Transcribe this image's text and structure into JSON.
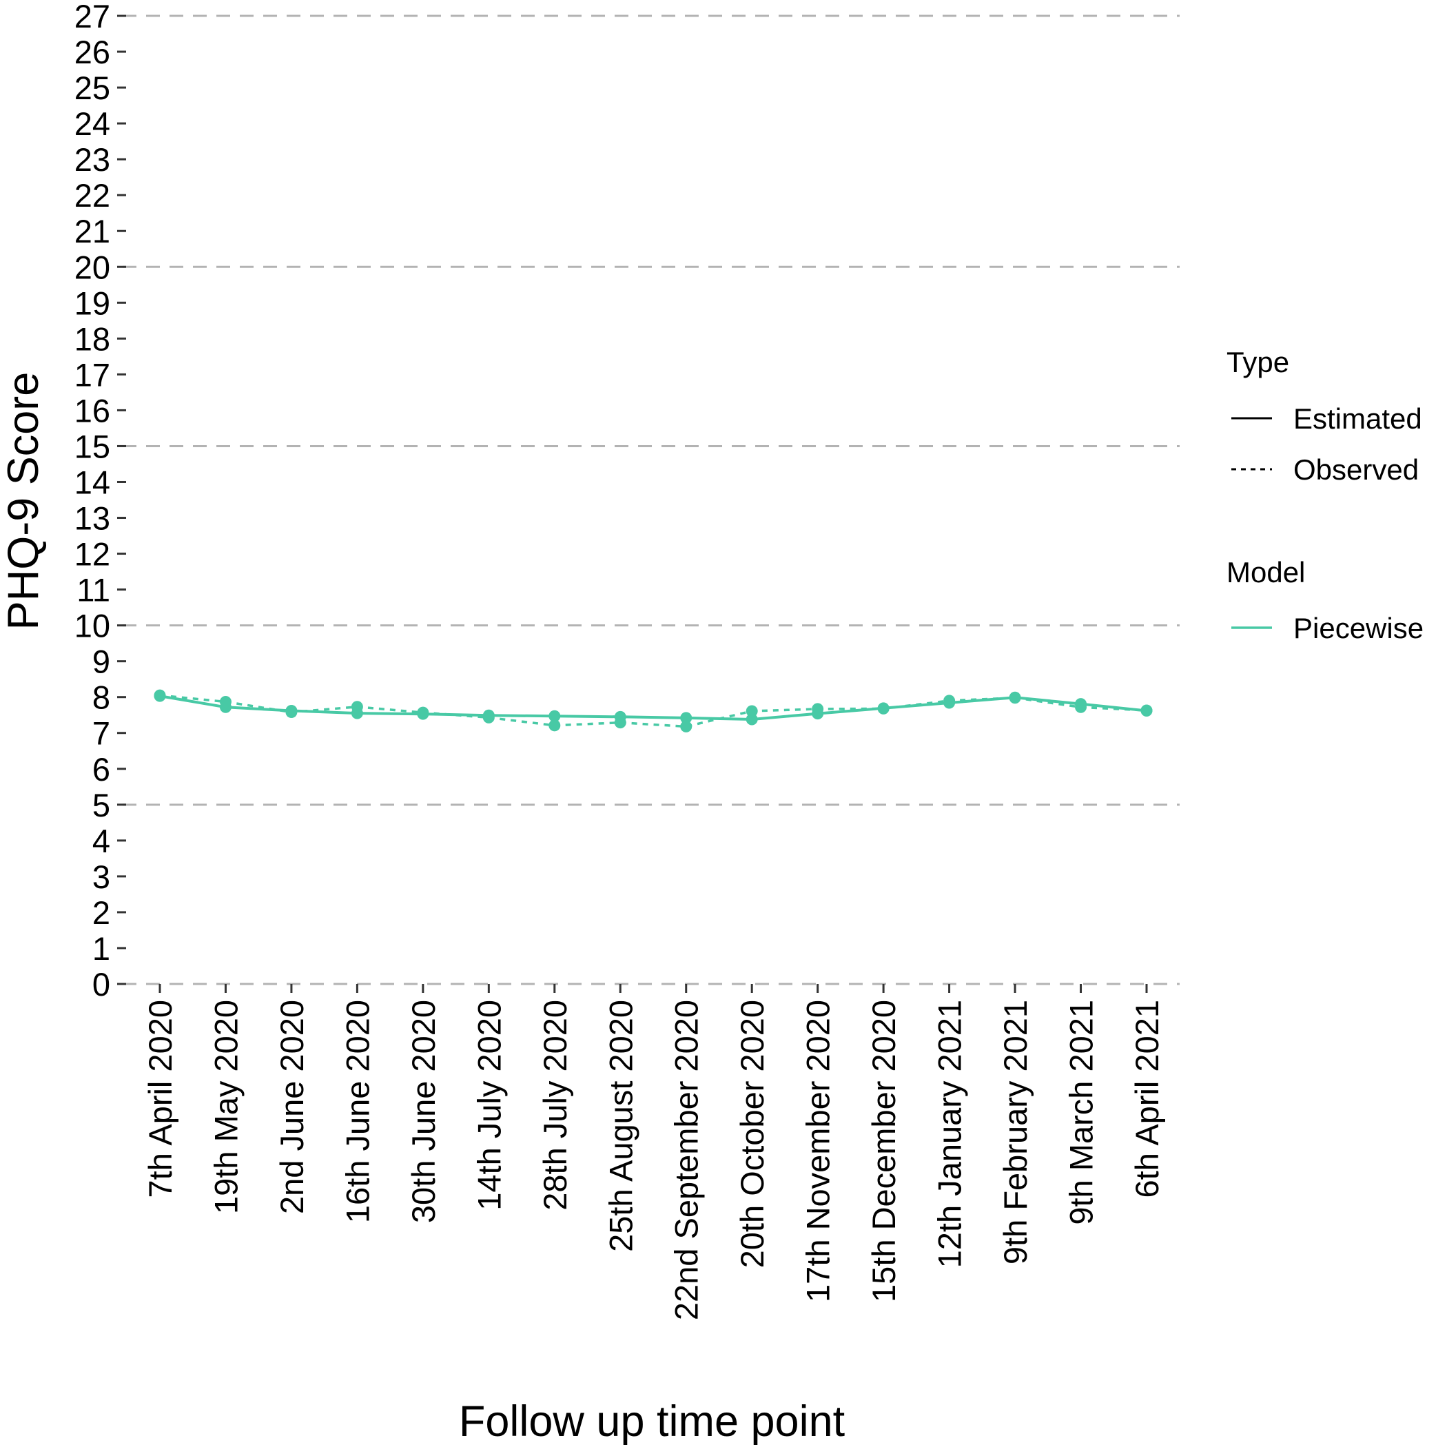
{
  "chart_data": {
    "type": "line",
    "xlabel": "Follow up time point",
    "ylabel": "PHQ-9 Score",
    "ylim": [
      0,
      27
    ],
    "yticks": [
      0,
      1,
      2,
      3,
      4,
      5,
      6,
      7,
      8,
      9,
      10,
      11,
      12,
      13,
      14,
      15,
      16,
      17,
      18,
      19,
      20,
      21,
      22,
      23,
      24,
      25,
      26,
      27
    ],
    "reference_lines": [
      0,
      5,
      10,
      15,
      20,
      27
    ],
    "categories": [
      "7th April 2020",
      "19th May 2020",
      "2nd June 2020",
      "16th June 2020",
      "30th June 2020",
      "14th July 2020",
      "28th July 2020",
      "25th August 2020",
      "22nd September 2020",
      "20th October 2020",
      "17th November 2020",
      "15th December 2020",
      "12th January 2021",
      "9th February 2021",
      "9th March 2021",
      "6th April 2021"
    ],
    "series": [
      {
        "model": "Piecewise",
        "type": "Estimated",
        "line_style": "solid",
        "color": "#48C9A5",
        "values": [
          8.03,
          7.72,
          7.62,
          7.55,
          7.53,
          7.49,
          7.47,
          7.45,
          7.42,
          7.38,
          7.54,
          7.69,
          7.84,
          7.99,
          7.81,
          7.62
        ]
      },
      {
        "model": "Piecewise",
        "type": "Observed",
        "line_style": "dotted",
        "color": "#48C9A5",
        "values": [
          8.05,
          7.87,
          7.58,
          7.73,
          7.57,
          7.43,
          7.21,
          7.29,
          7.18,
          7.61,
          7.67,
          7.68,
          7.9,
          7.98,
          7.72,
          7.63
        ]
      }
    ],
    "legend": {
      "placement": "right",
      "groups": [
        {
          "title": "Type",
          "entries": [
            {
              "label": "Estimated",
              "line_style": "solid",
              "color": "#000000"
            },
            {
              "label": "Observed",
              "line_style": "dotted",
              "color": "#000000"
            }
          ]
        },
        {
          "title": "Model",
          "entries": [
            {
              "label": "Piecewise",
              "line_style": "solid",
              "color": "#48C9A5"
            }
          ]
        }
      ]
    },
    "grid": "dashed horizontal reference lines at 0, 5, 10, 15, 20, 27",
    "colors": {
      "series": "#48C9A5",
      "reference_line": "#B3B3B3",
      "tick": "#333333"
    }
  }
}
